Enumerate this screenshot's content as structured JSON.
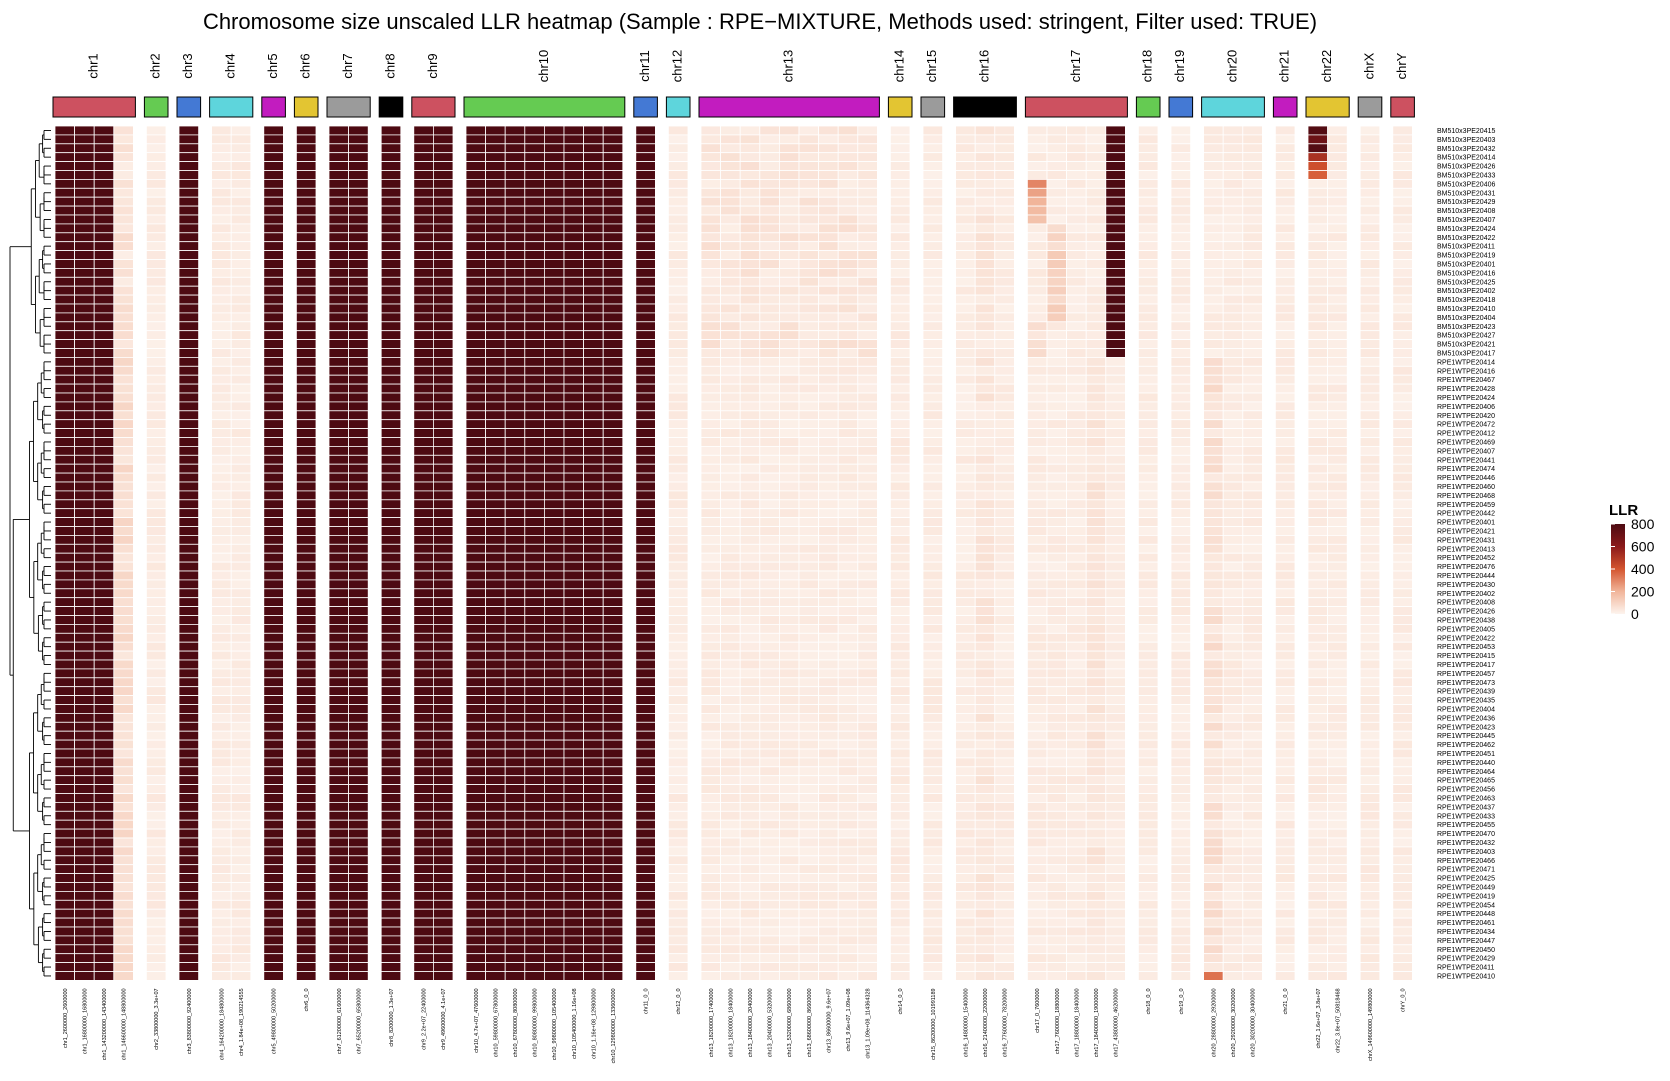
{
  "chart_data": {
    "type": "heatmap",
    "title": "Chromosome size unscaled LLR heatmap (Sample : RPE−MIXTURE, Methods used: stringent, Filter used: TRUE)",
    "legend": {
      "title": "LLR",
      "ticks": [
        800,
        600,
        400,
        200,
        0
      ],
      "range": [
        0,
        800
      ],
      "low_color": "#fdf4ee",
      "high_color": "#4d0a12"
    },
    "chromosomes": [
      {
        "name": "chr1",
        "color": "#cd5160",
        "bins": [
          "chr1_2600000_2600000",
          "chr1_16800000_16800000",
          "chr1_143200000_143400000",
          "chr1_146600000_148800000"
        ]
      },
      {
        "name": "chr2",
        "color": "#65cb52",
        "bins": [
          "chr2_33800000_3.3e+07"
        ]
      },
      {
        "name": "chr3",
        "color": "#4479d4",
        "bins": [
          "chr3_83800000_92400000"
        ]
      },
      {
        "name": "chr4",
        "color": "#5ed5dc",
        "bins": [
          "chr4_164200000_184800000",
          "chr4_1.84e+08_190214555"
        ]
      },
      {
        "name": "chr5",
        "color": "#c21cbf",
        "bins": [
          "chr5_49800000_50200000"
        ]
      },
      {
        "name": "chr6",
        "color": "#e3c532",
        "bins": [
          "chr6_0_0"
        ]
      },
      {
        "name": "chr7",
        "color": "#9b9b9b",
        "bins": [
          "chr7_61200000_61600000",
          "chr7_65200000_65800000"
        ]
      },
      {
        "name": "chr8",
        "color": "#000000",
        "bins": [
          "chr8_8200000_1.3e+07"
        ]
      },
      {
        "name": "chr9",
        "color": "#cd5160",
        "bins": [
          "chr9_2.2e+07_22400000",
          "chr9_49600000_4.1e+07"
        ]
      },
      {
        "name": "chr10",
        "color": "#65cb52",
        "bins": [
          "chr10_4.7e+07_47600000",
          "chr10_59800000_67800000",
          "chr10_67800000_80800000",
          "chr10_80800000_99800000",
          "chr10_99800000_105400000",
          "chr10_105400000_1.16e+08",
          "chr10_1.16e+08_129800000",
          "chr10_129800000_133600000"
        ]
      },
      {
        "name": "chr11",
        "color": "#4479d4",
        "bins": [
          "chr11_0_0"
        ]
      },
      {
        "name": "chr12",
        "color": "#5ed5dc",
        "bins": [
          "chr12_0_0"
        ]
      },
      {
        "name": "chr13",
        "color": "#c21cbf",
        "bins": [
          "chr13_18200000_17400000",
          "chr13_18200000_18400000",
          "chr13_18400000_20400000",
          "chr13_20400000_53200000",
          "chr13_53200000_68600000",
          "chr13_68600000_86600000",
          "chr13_86600000_9.6e+07",
          "chr13_9.6e+07_1.09e+08",
          "chr13_1.09e+08_114364328"
        ]
      },
      {
        "name": "chr14",
        "color": "#e3c532",
        "bins": [
          "chr14_0_0"
        ]
      },
      {
        "name": "chr15",
        "color": "#9b9b9b",
        "bins": [
          "chr15_86200000_101991189"
        ]
      },
      {
        "name": "chr16",
        "color": "#000000",
        "bins": [
          "chr16_14800000_15400000",
          "chr16_21400000_22000000",
          "chr16_77600000_78200000"
        ]
      },
      {
        "name": "chr17",
        "color": "#cd5160",
        "bins": [
          "chr17_0_7600000",
          "chr17_7600000_18800000",
          "chr17_18800000_18400000",
          "chr17_18400000_19000000",
          "chr17_43800000_46200000"
        ]
      },
      {
        "name": "chr18",
        "color": "#65cb52",
        "bins": [
          "chr18_0_0"
        ]
      },
      {
        "name": "chr19",
        "color": "#4479d4",
        "bins": [
          "chr19_0_0"
        ]
      },
      {
        "name": "chr20",
        "color": "#5ed5dc",
        "bins": [
          "chr20_28800000_29200000",
          "chr20_29200000_30200000",
          "chr20_30200000_30400000"
        ]
      },
      {
        "name": "chr21",
        "color": "#c21cbf",
        "bins": [
          "chr21_0_0"
        ]
      },
      {
        "name": "chr22",
        "color": "#e3c532",
        "bins": [
          "chr22_1.6e+07_3.8e+07",
          "chr22_3.8e+07_50818468"
        ]
      },
      {
        "name": "chrX",
        "color": "#9b9b9b",
        "bins": [
          "chrX_149600000_149800000"
        ]
      },
      {
        "name": "chrY",
        "color": "#cd5160",
        "bins": [
          "chrY_0_0"
        ]
      }
    ],
    "samples": [
      "BM510x3PE20415",
      "BM510x3PE20403",
      "BM510x3PE20432",
      "BM510x3PE20414",
      "BM510x3PE20426",
      "BM510x3PE20433",
      "BM510x3PE20406",
      "BM510x3PE20431",
      "BM510x3PE20429",
      "BM510x3PE20408",
      "BM510x3PE20407",
      "BM510x3PE20424",
      "BM510x3PE20422",
      "BM510x3PE20411",
      "BM510x3PE20419",
      "BM510x3PE20401",
      "BM510x3PE20416",
      "BM510x3PE20425",
      "BM510x3PE20402",
      "BM510x3PE20418",
      "BM510x3PE20410",
      "BM510x3PE20404",
      "BM510x3PE20423",
      "BM510x3PE20427",
      "BM510x3PE20421",
      "BM510x3PE20417",
      "RPE1WTPE20414",
      "RPE1WTPE20416",
      "RPE1WTPE20467",
      "RPE1WTPE20428",
      "RPE1WTPE20424",
      "RPE1WTPE20406",
      "RPE1WTPE20420",
      "RPE1WTPE20472",
      "RPE1WTPE20412",
      "RPE1WTPE20469",
      "RPE1WTPE20407",
      "RPE1WTPE20441",
      "RPE1WTPE20474",
      "RPE1WTPE20446",
      "RPE1WTPE20460",
      "RPE1WTPE20468",
      "RPE1WTPE20459",
      "RPE1WTPE20442",
      "RPE1WTPE20401",
      "RPE1WTPE20421",
      "RPE1WTPE20431",
      "RPE1WTPE20413",
      "RPE1WTPE20452",
      "RPE1WTPE20476",
      "RPE1WTPE20444",
      "RPE1WTPE20430",
      "RPE1WTPE20402",
      "RPE1WTPE20408",
      "RPE1WTPE20426",
      "RPE1WTPE20438",
      "RPE1WTPE20405",
      "RPE1WTPE20422",
      "RPE1WTPE20453",
      "RPE1WTPE20415",
      "RPE1WTPE20417",
      "RPE1WTPE20457",
      "RPE1WTPE20473",
      "RPE1WTPE20439",
      "RPE1WTPE20435",
      "RPE1WTPE20404",
      "RPE1WTPE20436",
      "RPE1WTPE20423",
      "RPE1WTPE20445",
      "RPE1WTPE20462",
      "RPE1WTPE20451",
      "RPE1WTPE20440",
      "RPE1WTPE20464",
      "RPE1WTPE20465",
      "RPE1WTPE20456",
      "RPE1WTPE20463",
      "RPE1WTPE20437",
      "RPE1WTPE20433",
      "RPE1WTPE20455",
      "RPE1WTPE20470",
      "RPE1WTPE20432",
      "RPE1WTPE20403",
      "RPE1WTPE20466",
      "RPE1WTPE20471",
      "RPE1WTPE20425",
      "RPE1WTPE20449",
      "RPE1WTPE20419",
      "RPE1WTPE20454",
      "RPE1WTPE20448",
      "RPE1WTPE20461",
      "RPE1WTPE20434",
      "RPE1WTPE20447",
      "RPE1WTPE20450",
      "RPE1WTPE20429",
      "RPE1WTPE20411",
      "RPE1WTPE20410"
    ],
    "high_bins": [
      0,
      1,
      2,
      5,
      8,
      9,
      10,
      11,
      12,
      13,
      14,
      15,
      16,
      17,
      18,
      19,
      20,
      21,
      22,
      23
    ],
    "special_values": {
      "bm_chr17_last_bin": 800,
      "chr22_first_bin_top_rows": [
        780,
        700,
        780,
        520,
        420,
        380
      ],
      "chr17_first_bin_rows_6_10": [
        300,
        240,
        200,
        180,
        160
      ],
      "chr20_first_bin_last_row": 340
    }
  }
}
